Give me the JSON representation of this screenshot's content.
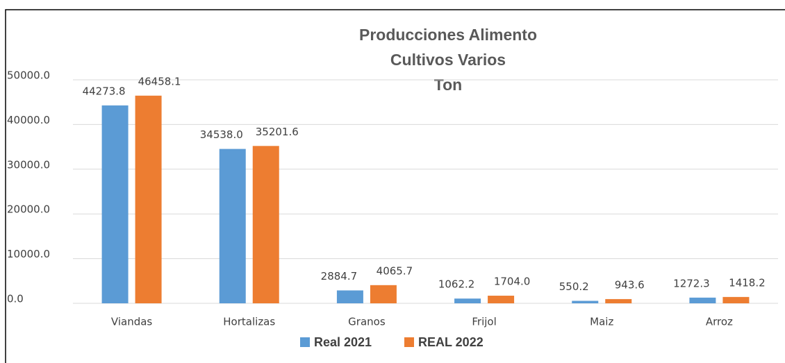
{
  "chart_data": {
    "type": "bar",
    "title": [
      "Producciones Alimento",
      "Cultivos Varios",
      "Ton"
    ],
    "categories": [
      "Viandas",
      "Hortalizas",
      "Granos",
      "Frijol",
      "Maiz",
      "Arroz"
    ],
    "series": [
      {
        "name": "Real 2021",
        "color": "#5b9bd5",
        "values": [
          44273.8,
          34538.0,
          2884.7,
          1062.2,
          550.2,
          1272.3
        ],
        "value_labels": [
          "44273.8",
          "34538.0",
          "2884.7",
          "1062.2",
          "550.2",
          "1272.3"
        ]
      },
      {
        "name": "REAL 2022",
        "color": "#ed7d31",
        "values": [
          46458.1,
          35201.6,
          4065.7,
          1704.0,
          943.6,
          1418.2
        ],
        "value_labels": [
          "46458.1",
          "35201.6",
          "4065.7",
          "1704.0",
          "943.6",
          "1418.2"
        ]
      }
    ],
    "ylim": [
      0,
      50000
    ],
    "yticks": [
      {
        "value": 0,
        "label": "0.0"
      },
      {
        "value": 10000,
        "label": "10000.0"
      },
      {
        "value": 20000,
        "label": "20000.0"
      },
      {
        "value": 30000,
        "label": "30000.0"
      },
      {
        "value": 40000,
        "label": "40000.0"
      },
      {
        "value": 50000,
        "label": "50000.0"
      }
    ],
    "grid": true,
    "legend": "bottom"
  }
}
